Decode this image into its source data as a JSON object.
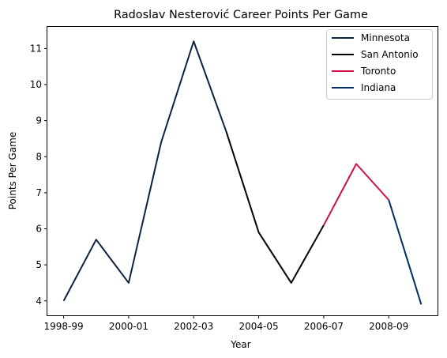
{
  "chart_data": {
    "type": "line",
    "title": "Radoslav Nesterović Career Points Per Game",
    "xlabel": "Year",
    "ylabel": "Points Per Game",
    "x_tick_labels": [
      "1998-99",
      "2000-01",
      "2002-03",
      "2004-05",
      "2006-07",
      "2008-09"
    ],
    "x_ticks": [
      0,
      2,
      4,
      6,
      8,
      10
    ],
    "xlim": [
      -0.5,
      11.5
    ],
    "ylim": [
      3.6,
      11.6
    ],
    "y_ticks": [
      4,
      5,
      6,
      7,
      8,
      9,
      10,
      11
    ],
    "grid": false,
    "legend_position": "top-right",
    "series": [
      {
        "name": "Minnesota",
        "color": "#0c2340",
        "x": [
          0,
          1,
          2,
          3,
          4,
          5
        ],
        "y": [
          4.0,
          5.7,
          4.5,
          8.4,
          11.2,
          8.7
        ]
      },
      {
        "name": "San Antonio",
        "color": "#000000",
        "x": [
          5,
          6,
          7,
          8
        ],
        "y": [
          8.7,
          5.9,
          4.5,
          6.1
        ]
      },
      {
        "name": "Toronto",
        "color": "#ce1141",
        "x": [
          8,
          9,
          10
        ],
        "y": [
          6.1,
          7.8,
          6.8
        ]
      },
      {
        "name": "Indiana",
        "color": "#002d62",
        "x": [
          10,
          11
        ],
        "y": [
          6.8,
          3.9
        ]
      }
    ]
  }
}
